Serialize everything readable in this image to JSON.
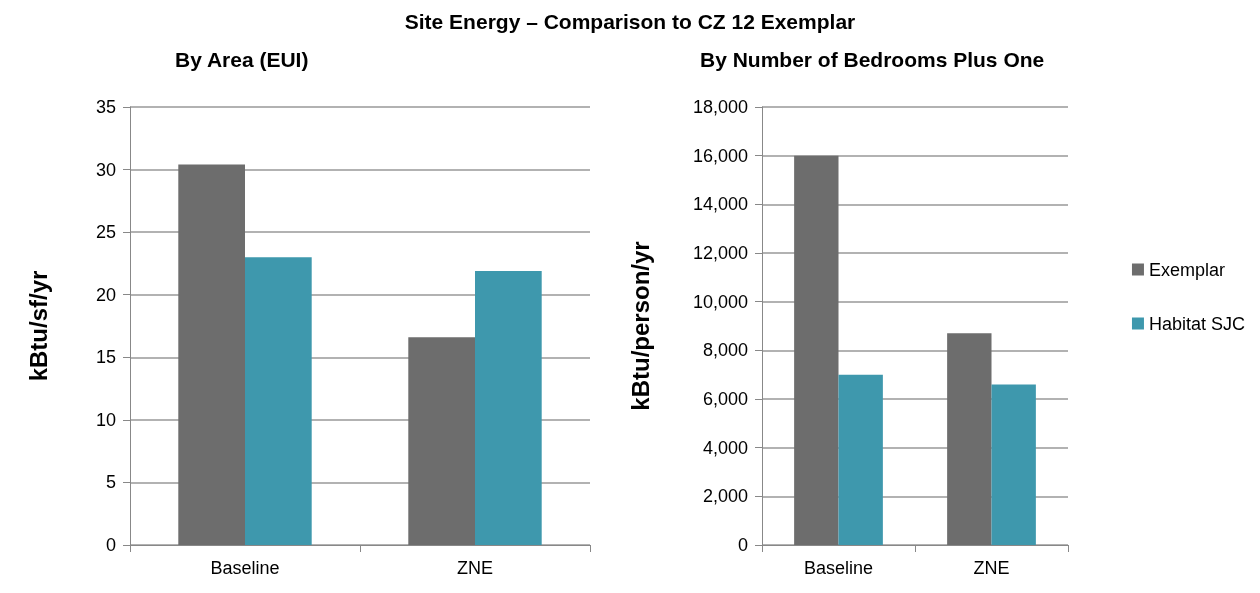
{
  "chart_data": [
    {
      "type": "bar",
      "title": "Site Energy – Comparison to CZ 12 Exemplar",
      "subtitle": "By Area (EUI)",
      "ylabel": "kBtu/sf/yr",
      "categories": [
        "Baseline",
        "ZNE"
      ],
      "series": [
        {
          "color": "#6d6d6d",
          "values": [
            30.4,
            16.6
          ]
        },
        {
          "color": "#3e98ad",
          "values": [
            23.0,
            21.9
          ]
        }
      ],
      "ylim": [
        0,
        35
      ],
      "yticks": [
        0,
        5,
        10,
        15,
        20,
        25,
        30,
        35
      ],
      "grid": "y",
      "legend": false
    },
    {
      "type": "bar",
      "title": "By Number of Bedrooms Plus One",
      "ylabel": "kBtu/person/yr",
      "categories": [
        "Baseline",
        "ZNE"
      ],
      "series": [
        {
          "name": "Exemplar",
          "color": "#6d6d6d",
          "values": [
            16000,
            8700
          ]
        },
        {
          "name": "Habitat SJC",
          "color": "#3e98ad",
          "values": [
            7000,
            6600
          ]
        }
      ],
      "ylim": [
        0,
        18000
      ],
      "yticks": [
        {
          "value": 0,
          "label": "0"
        },
        {
          "value": 2000,
          "label": "2,000"
        },
        {
          "value": 4000,
          "label": "4,000"
        },
        {
          "value": 6000,
          "label": "6,000"
        },
        {
          "value": 8000,
          "label": "8,000"
        },
        {
          "value": 10000,
          "label": "10,000"
        },
        {
          "value": 12000,
          "label": "12,000"
        },
        {
          "value": 14000,
          "label": "14,000"
        },
        {
          "value": 16000,
          "label": "16,000"
        },
        {
          "value": 18000,
          "label": "18,000"
        }
      ],
      "grid": "y",
      "legend": "right"
    }
  ]
}
